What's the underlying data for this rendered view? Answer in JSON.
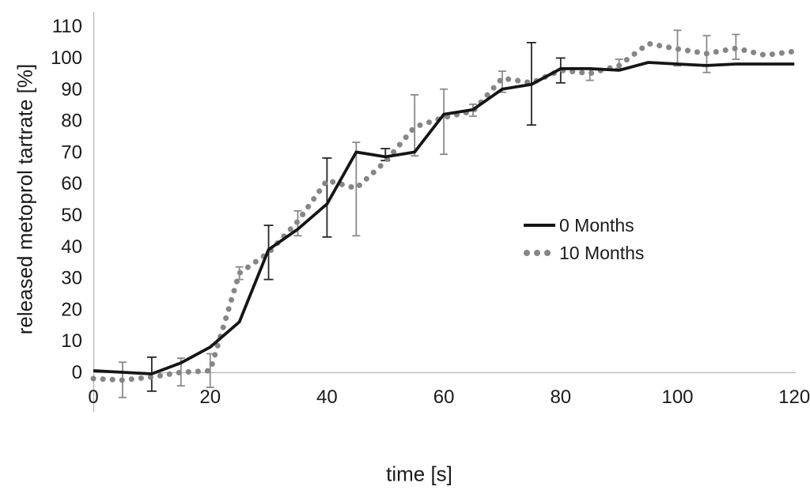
{
  "chart_data": {
    "type": "line",
    "title": "",
    "xlabel": "time [s]",
    "ylabel": "released metoprol tartrate [%]",
    "x_ticks": [
      0,
      20,
      40,
      60,
      80,
      100,
      120
    ],
    "y_ticks": [
      0,
      10,
      20,
      30,
      40,
      50,
      60,
      70,
      80,
      90,
      100,
      110
    ],
    "xlim": [
      0,
      120
    ],
    "ylim": [
      0,
      110
    ],
    "grid": "off",
    "legend_position": "center-right",
    "axis_color": "#b3b3b3",
    "series": [
      {
        "name": "0 Months",
        "style": "solid",
        "color": "#151515",
        "error_color": "#262626",
        "x": [
          0,
          5,
          10,
          15,
          20,
          25,
          30,
          35,
          40,
          45,
          50,
          55,
          60,
          65,
          70,
          75,
          80,
          85,
          90,
          95,
          100,
          105,
          110,
          115,
          120
        ],
        "y": [
          0.5,
          0,
          -0.5,
          3,
          8,
          16,
          39,
          45.5,
          53.5,
          70,
          68.5,
          70,
          82,
          83.5,
          90,
          91.5,
          96.5,
          96.5,
          96,
          98.5,
          98,
          97.5,
          98,
          98,
          98
        ],
        "error_bars": [
          {
            "x": 10,
            "lo": -6,
            "hi": 4.8
          },
          {
            "x": 30,
            "lo": 29.5,
            "hi": 46.7
          },
          {
            "x": 40,
            "lo": 43,
            "hi": 68.1
          },
          {
            "x": 50,
            "lo": 67.3,
            "hi": 71.1
          },
          {
            "x": 75,
            "lo": 78.6,
            "hi": 104.8
          },
          {
            "x": 80,
            "lo": 92,
            "hi": 99.9
          }
        ]
      },
      {
        "name": "10 Months",
        "style": "dotted",
        "color": "#868686",
        "error_color": "#8a8a8a",
        "x": [
          0,
          5,
          10,
          15,
          20,
          25,
          30,
          35,
          40,
          45,
          50,
          55,
          60,
          65,
          70,
          75,
          80,
          85,
          90,
          95,
          100,
          105,
          110,
          115,
          120
        ],
        "y": [
          -2,
          -2.5,
          -1.5,
          0,
          0.5,
          31.5,
          38,
          48,
          61,
          58.5,
          67,
          78,
          81,
          83,
          93.5,
          92,
          96,
          95,
          97.5,
          104.5,
          102.8,
          101.3,
          103,
          100.8,
          102
        ],
        "error_bars": [
          {
            "x": 5,
            "lo": -8,
            "hi": 3.2
          },
          {
            "x": 15,
            "lo": -4.3,
            "hi": 4.5
          },
          {
            "x": 20,
            "lo": -4.8,
            "hi": 5.9
          },
          {
            "x": 25,
            "lo": 29.5,
            "hi": 33.5
          },
          {
            "x": 35,
            "lo": 43.4,
            "hi": 51.3
          },
          {
            "x": 45,
            "lo": 43.4,
            "hi": 73.1
          },
          {
            "x": 55,
            "lo": 68.8,
            "hi": 88.2
          },
          {
            "x": 60,
            "lo": 69.3,
            "hi": 90
          },
          {
            "x": 65,
            "lo": 81.4,
            "hi": 85.2
          },
          {
            "x": 70,
            "lo": 89,
            "hi": 95.7
          },
          {
            "x": 85,
            "lo": 92.8,
            "hi": 96.6
          },
          {
            "x": 90,
            "lo": 96.6,
            "hi": 99.5
          },
          {
            "x": 100,
            "lo": 97.4,
            "hi": 108.7
          },
          {
            "x": 105,
            "lo": 95.3,
            "hi": 107
          },
          {
            "x": 110,
            "lo": 99.5,
            "hi": 107.4
          }
        ]
      }
    ]
  }
}
